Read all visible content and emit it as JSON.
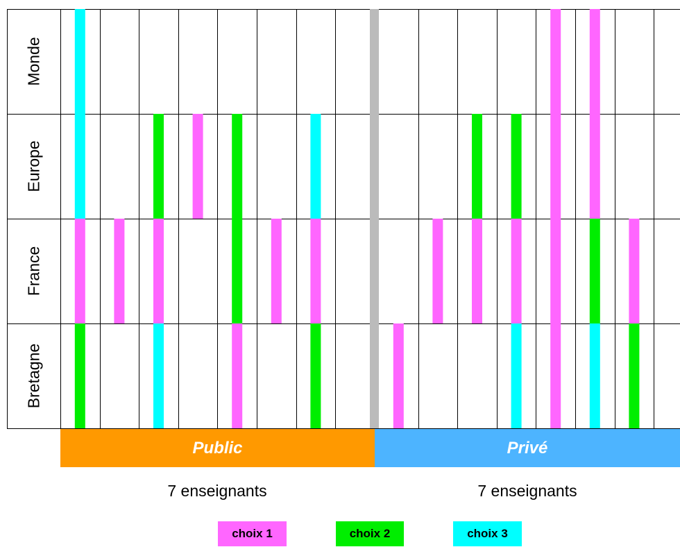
{
  "chart_data": {
    "type": "heatmap",
    "rows": [
      "Monde",
      "Europe",
      "France",
      "Bretagne"
    ],
    "groups": [
      {
        "label": "Public",
        "count_label": "7 enseignants",
        "color": "#FF9900"
      },
      {
        "label": "Privé",
        "count_label": "7 enseignants",
        "color": "#4DB4FF"
      }
    ],
    "legend": [
      {
        "label": "choix 1",
        "color": "#FF66FF"
      },
      {
        "label": "choix 2",
        "color": "#00EE00"
      },
      {
        "label": "choix 3",
        "color": "#00FFFF"
      }
    ],
    "separator_color": "#BBBBBB",
    "grid": true,
    "cells": [
      {
        "group": 0,
        "teacher": 1,
        "Monde": 3,
        "Europe": 3,
        "France": 1,
        "Bretagne": 2
      },
      {
        "group": 0,
        "teacher": 2,
        "Monde": null,
        "Europe": null,
        "France": 1,
        "Bretagne": null
      },
      {
        "group": 0,
        "teacher": 3,
        "Monde": null,
        "Europe": 2,
        "France": 1,
        "Bretagne": 3
      },
      {
        "group": 0,
        "teacher": 4,
        "Monde": null,
        "Europe": 1,
        "France": null,
        "Bretagne": null
      },
      {
        "group": 0,
        "teacher": 5,
        "Monde": null,
        "Europe": 2,
        "France": 2,
        "Bretagne": 1
      },
      {
        "group": 0,
        "teacher": 6,
        "Monde": null,
        "Europe": null,
        "France": 1,
        "Bretagne": null
      },
      {
        "group": 0,
        "teacher": 7,
        "Monde": null,
        "Europe": 3,
        "France": 1,
        "Bretagne": 2
      },
      {
        "group": 1,
        "teacher": 1,
        "Monde": null,
        "Europe": null,
        "France": null,
        "Bretagne": 1
      },
      {
        "group": 1,
        "teacher": 2,
        "Monde": null,
        "Europe": null,
        "France": 1,
        "Bretagne": null
      },
      {
        "group": 1,
        "teacher": 3,
        "Monde": null,
        "Europe": 2,
        "France": 1,
        "Bretagne": null
      },
      {
        "group": 1,
        "teacher": 4,
        "Monde": null,
        "Europe": 2,
        "France": 1,
        "Bretagne": 3
      },
      {
        "group": 1,
        "teacher": 5,
        "Monde": 1,
        "Europe": 1,
        "France": 1,
        "Bretagne": 1
      },
      {
        "group": 1,
        "teacher": 6,
        "Monde": 1,
        "Europe": 1,
        "France": 2,
        "Bretagne": 3
      },
      {
        "group": 1,
        "teacher": 7,
        "Monde": null,
        "Europe": null,
        "France": 1,
        "Bretagne": 2
      }
    ]
  }
}
